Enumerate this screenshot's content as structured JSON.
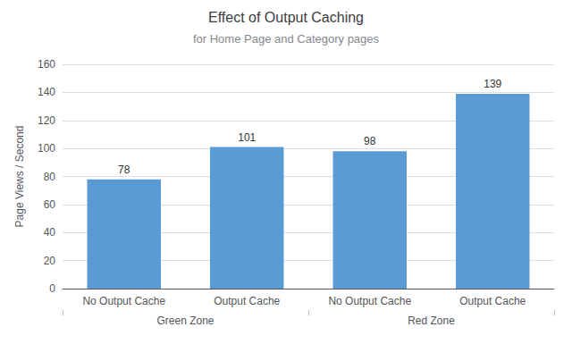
{
  "chart_data": {
    "type": "bar",
    "title": "Effect of Output Caching",
    "subtitle": "for Home Page and Category pages",
    "y_label": "Page Views / Second",
    "categories": [
      "No Output Cache",
      "Output Cache",
      "No Output Cache",
      "Output Cache"
    ],
    "values": [
      78,
      101,
      98,
      139
    ],
    "group_labels": [
      "Green Zone",
      "Red Zone"
    ],
    "color": "#5B9BD5",
    "ylim": [
      0,
      160
    ],
    "yticks": [
      0,
      20,
      40,
      60,
      80,
      100,
      120,
      140,
      160
    ],
    "grid": true,
    "data_labels": true
  }
}
